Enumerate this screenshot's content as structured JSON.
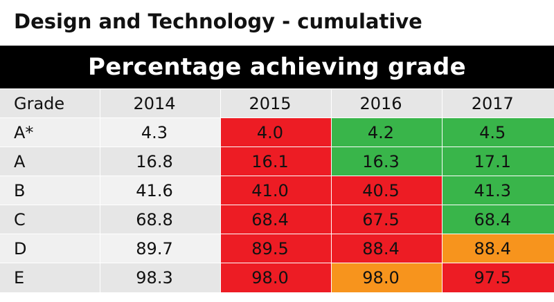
{
  "title": "Design and Technology - cumulative",
  "banner": "Percentage achieving grade",
  "colors": {
    "red": "#ed1c24",
    "green": "#39b54a",
    "orange": "#f7941d",
    "grade_col_even": "#e6e6e6",
    "grade_col_odd": "#f0f0f0",
    "base_col_even": "#e6e6e6",
    "base_col_odd": "#f2f2f2",
    "header_row": "#e6e6e6"
  },
  "chart_data": {
    "type": "table",
    "columns": [
      "Grade",
      "2014",
      "2015",
      "2016",
      "2017"
    ],
    "rows": [
      {
        "grade": "A*",
        "values": [
          "4.3",
          "4.0",
          "4.2",
          "4.5"
        ],
        "status": [
          "base",
          "red",
          "green",
          "green"
        ]
      },
      {
        "grade": "A",
        "values": [
          "16.8",
          "16.1",
          "16.3",
          "17.1"
        ],
        "status": [
          "base",
          "red",
          "green",
          "green"
        ]
      },
      {
        "grade": "B",
        "values": [
          "41.6",
          "41.0",
          "40.5",
          "41.3"
        ],
        "status": [
          "base",
          "red",
          "red",
          "green"
        ]
      },
      {
        "grade": "C",
        "values": [
          "68.8",
          "68.4",
          "67.5",
          "68.4"
        ],
        "status": [
          "base",
          "red",
          "red",
          "green"
        ]
      },
      {
        "grade": "D",
        "values": [
          "89.7",
          "89.5",
          "88.4",
          "88.4"
        ],
        "status": [
          "base",
          "red",
          "red",
          "orange"
        ]
      },
      {
        "grade": "E",
        "values": [
          "98.3",
          "98.0",
          "98.0",
          "97.5"
        ],
        "status": [
          "base",
          "red",
          "orange",
          "red"
        ]
      }
    ]
  }
}
